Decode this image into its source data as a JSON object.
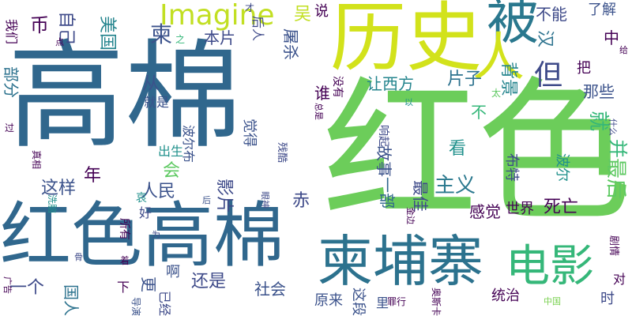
{
  "colors": {
    "background": "#ffffff",
    "palette": [
      "#440154",
      "#3b528b",
      "#21918c",
      "#35b779",
      "#7ad151",
      "#fde725"
    ]
  },
  "words": [
    {
      "text": "高棉"
    },
    {
      "text": "红色"
    },
    {
      "text": "红色高棉"
    },
    {
      "text": "历史"
    },
    {
      "text": "柬埔寨"
    },
    {
      "text": "被"
    },
    {
      "text": "人"
    },
    {
      "text": "电影"
    },
    {
      "text": "Imagine"
    },
    {
      "text": "自己"
    },
    {
      "text": "美国"
    },
    {
      "text": "本片"
    },
    {
      "text": "屠杀"
    },
    {
      "text": "不能"
    },
    {
      "text": "了解"
    },
    {
      "text": "汉"
    },
    {
      "text": "中"
    },
    {
      "text": "背景"
    },
    {
      "text": "片子"
    },
    {
      "text": "但"
    },
    {
      "text": "让西方"
    },
    {
      "text": "那些"
    },
    {
      "text": "把"
    },
    {
      "text": "谁"
    },
    {
      "text": "从"
    },
    {
      "text": "就"
    },
    {
      "text": "并"
    },
    {
      "text": "最后"
    },
    {
      "text": "主义"
    },
    {
      "text": "故事"
    },
    {
      "text": "看"
    },
    {
      "text": "布特"
    },
    {
      "text": "波尔"
    },
    {
      "text": "这样"
    },
    {
      "text": "年"
    },
    {
      "text": "人民"
    },
    {
      "text": "影片"
    },
    {
      "text": "会"
    },
    {
      "text": "一部"
    },
    {
      "text": "最佳"
    },
    {
      "text": "感觉"
    },
    {
      "text": "世界"
    },
    {
      "text": "死亡"
    },
    {
      "text": "赤"
    },
    {
      "text": "一个"
    },
    {
      "text": "国人"
    },
    {
      "text": "更"
    },
    {
      "text": "还是"
    },
    {
      "text": "社会"
    },
    {
      "text": "原来"
    },
    {
      "text": "这段"
    },
    {
      "text": "统治"
    },
    {
      "text": "时"
    },
    {
      "text": "对"
    },
    {
      "text": "部分"
    },
    {
      "text": "我们"
    },
    {
      "text": "币"
    },
    {
      "text": "吴"
    },
    {
      "text": "说"
    },
    {
      "text": "柬"
    },
    {
      "text": "没有"
    },
    {
      "text": "响起"
    },
    {
      "text": "觉得"
    },
    {
      "text": "波尔布"
    },
    {
      "text": "出生"
    },
    {
      "text": "残酷"
    },
    {
      "text": "下"
    },
    {
      "text": "已经"
    },
    {
      "text": "啊"
    },
    {
      "text": "所有"
    },
    {
      "text": "好"
    },
    {
      "text": "哀"
    },
    {
      "text": "真相"
    },
    {
      "text": "洗脑"
    },
    {
      "text": "过"
    },
    {
      "text": "广告"
    },
    {
      "text": "骨"
    },
    {
      "text": "为"
    },
    {
      "text": "着"
    },
    {
      "text": "导演"
    },
    {
      "text": "罪行"
    },
    {
      "text": "奥斯卡"
    },
    {
      "text": "中国"
    },
    {
      "text": "里"
    },
    {
      "text": "眼神"
    },
    {
      "text": "后"
    },
    {
      "text": "金边"
    },
    {
      "text": "剧情"
    },
    {
      "text": "给"
    },
    {
      "text": "什么"
    },
    {
      "text": "太"
    },
    {
      "text": "以"
    },
    {
      "text": "总是"
    },
    {
      "text": "就是"
    },
    {
      "text": "之"
    },
    {
      "text": "点"
    },
    {
      "text": "才"
    },
    {
      "text": "后人"
    },
    {
      "text": "不"
    }
  ]
}
